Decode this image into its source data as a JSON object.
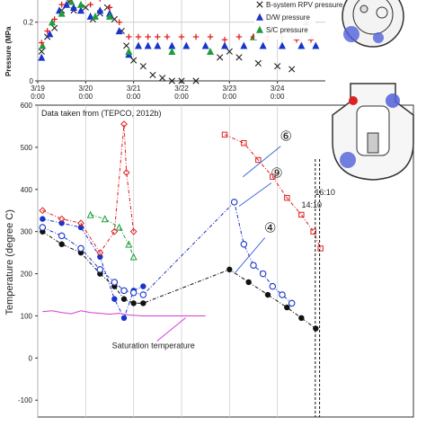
{
  "chart_data": [
    {
      "type": "scatter",
      "ylabel": "Pressure (MPa",
      "ylim": [
        0,
        0.3
      ],
      "xlim": [
        0,
        6
      ],
      "y_ticks": [
        0,
        0.2
      ],
      "y_tick_labels": [
        "0",
        "0.2"
      ],
      "x_ticks": [
        0,
        1,
        2,
        3,
        4,
        5
      ],
      "x_tick_labels": [
        [
          "3/19",
          "0:00"
        ],
        [
          "3/20",
          "0:00"
        ],
        [
          "3/21",
          "0:00"
        ],
        [
          "3/22",
          "0:00"
        ],
        [
          "3/23",
          "0:00"
        ],
        [
          "3/24",
          "0:00"
        ]
      ],
      "legend_position": "top-right",
      "series": [
        {
          "name": "B-system RPV pressure",
          "marker": "x",
          "color": "#222222",
          "points": [
            [
              0.08,
              0.1
            ],
            [
              0.2,
              0.15
            ],
            [
              0.35,
              0.18
            ],
            [
              0.5,
              0.24
            ],
            [
              0.65,
              0.27
            ],
            [
              0.75,
              0.24
            ],
            [
              0.9,
              0.29
            ],
            [
              1.0,
              0.25
            ],
            [
              1.15,
              0.21
            ],
            [
              1.3,
              0.23
            ],
            [
              1.45,
              0.25
            ],
            [
              1.6,
              0.21
            ],
            [
              1.75,
              0.17
            ],
            [
              1.85,
              0.12
            ],
            [
              2.0,
              0.07
            ],
            [
              2.2,
              0.05
            ],
            [
              2.4,
              0.02
            ],
            [
              2.6,
              0.01
            ],
            [
              2.8,
              0.0
            ],
            [
              3.0,
              0.0
            ],
            [
              3.3,
              0.0
            ],
            [
              3.8,
              0.08
            ],
            [
              4.0,
              0.1
            ],
            [
              4.2,
              0.08
            ],
            [
              4.6,
              0.06
            ],
            [
              5.0,
              0.05
            ],
            [
              5.3,
              0.04
            ]
          ]
        },
        {
          "name": "D/W pressure",
          "marker": "triangle",
          "color": "#1a35c9",
          "points": [
            [
              0.08,
              0.08
            ],
            [
              0.25,
              0.16
            ],
            [
              0.45,
              0.24
            ],
            [
              0.6,
              0.26
            ],
            [
              0.75,
              0.25
            ],
            [
              0.9,
              0.24
            ],
            [
              1.1,
              0.22
            ],
            [
              1.3,
              0.24
            ],
            [
              1.5,
              0.23
            ],
            [
              1.7,
              0.17
            ],
            [
              1.9,
              0.09
            ],
            [
              2.1,
              0.12
            ],
            [
              2.3,
              0.12
            ],
            [
              2.5,
              0.12
            ],
            [
              2.8,
              0.12
            ],
            [
              3.1,
              0.12
            ],
            [
              3.5,
              0.12
            ],
            [
              3.9,
              0.12
            ],
            [
              4.3,
              0.12
            ],
            [
              4.7,
              0.12
            ],
            [
              5.1,
              0.12
            ],
            [
              5.5,
              0.12
            ],
            [
              5.8,
              0.12
            ]
          ]
        },
        {
          "name": "S/C pressure",
          "marker": "triangle",
          "color": "#1f9e3a",
          "points": [
            [
              0.1,
              0.12
            ],
            [
              0.3,
              0.2
            ],
            [
              0.5,
              0.23
            ],
            [
              0.7,
              0.27
            ],
            [
              0.9,
              0.26
            ],
            [
              1.2,
              0.22
            ],
            [
              1.5,
              0.22
            ],
            [
              1.9,
              0.1
            ],
            [
              2.8,
              0.1
            ],
            [
              3.6,
              0.1
            ],
            [
              4.5,
              0.15
            ],
            [
              5.6,
              0.2
            ]
          ]
        },
        {
          "name": "",
          "marker": "plus",
          "color": "#e02020",
          "points": [
            [
              0.08,
              0.13
            ],
            [
              0.2,
              0.17
            ],
            [
              0.35,
              0.21
            ],
            [
              0.5,
              0.26
            ],
            [
              0.7,
              0.28
            ],
            [
              0.9,
              0.29
            ],
            [
              1.1,
              0.26
            ],
            [
              1.3,
              0.28
            ],
            [
              1.5,
              0.25
            ],
            [
              1.7,
              0.2
            ],
            [
              1.9,
              0.15
            ],
            [
              2.1,
              0.15
            ],
            [
              2.3,
              0.15
            ],
            [
              2.5,
              0.15
            ],
            [
              2.7,
              0.15
            ],
            [
              3.0,
              0.15
            ],
            [
              3.3,
              0.15
            ],
            [
              3.6,
              0.15
            ],
            [
              3.9,
              0.14
            ],
            [
              4.2,
              0.15
            ],
            [
              4.5,
              0.15
            ],
            [
              4.8,
              0.15
            ],
            [
              5.1,
              0.15
            ],
            [
              5.4,
              0.14
            ],
            [
              5.7,
              0.14
            ]
          ]
        }
      ]
    },
    {
      "type": "line",
      "title": "Data taken from (TEPCO, 2012b)",
      "ylabel": "Temperature (degree C)",
      "ylim": [
        -140,
        600
      ],
      "xlim": [
        0,
        6
      ],
      "y_ticks": [
        -100,
        0,
        100,
        200,
        300,
        400,
        500,
        600
      ],
      "annotations": [
        {
          "text": "⑥",
          "color": "#3a5fd9",
          "target": [
            4.28,
            430
          ]
        },
        {
          "text": "⑨",
          "color": "#3a5fd9",
          "target": [
            4.2,
            360
          ]
        },
        {
          "text": "④",
          "color": "#3a5fd9",
          "target": [
            4.1,
            200
          ]
        },
        {
          "text": "Saturation temperature",
          "color": "#d43bd4",
          "target": [
            2.3,
            100
          ]
        },
        {
          "text": "14:10",
          "color": "#111111",
          "x": 5.79
        },
        {
          "text": "16:10",
          "color": "#111111",
          "x": 5.88
        }
      ],
      "series": [
        {
          "name": "",
          "color": "#1a35c9",
          "line": "dashdot",
          "marker": "circle-filled",
          "points": [
            [
              0.1,
              330
            ],
            [
              0.5,
              320
            ],
            [
              0.9,
              310
            ],
            [
              1.3,
              240
            ],
            [
              1.6,
              140
            ],
            [
              1.8,
              95
            ],
            [
              2.0,
              160
            ],
            [
              2.2,
              170
            ]
          ]
        },
        {
          "name": "",
          "color": "#111111",
          "line": "dashdot",
          "marker": "circle-filled",
          "points": [
            [
              0.1,
              300
            ],
            [
              0.5,
              270
            ],
            [
              0.9,
              250
            ],
            [
              1.3,
              200
            ],
            [
              1.6,
              170
            ],
            [
              1.8,
              140
            ],
            [
              2.0,
              130
            ],
            [
              2.2,
              130
            ],
            [
              4.0,
              210
            ],
            [
              4.4,
              180
            ],
            [
              4.8,
              150
            ],
            [
              5.2,
              120
            ],
            [
              5.5,
              95
            ],
            [
              5.8,
              70
            ]
          ]
        },
        {
          "name": "",
          "color": "#1a35c9",
          "line": "dashdot",
          "marker": "circle-open",
          "points": [
            [
              0.1,
              310
            ],
            [
              0.5,
              290
            ],
            [
              0.9,
              260
            ],
            [
              1.3,
              210
            ],
            [
              1.6,
              180
            ],
            [
              1.8,
              160
            ],
            [
              2.0,
              155
            ],
            [
              2.2,
              150
            ],
            [
              4.1,
              370
            ],
            [
              4.3,
              270
            ],
            [
              4.5,
              220
            ],
            [
              4.7,
              200
            ],
            [
              4.9,
              170
            ],
            [
              5.1,
              150
            ],
            [
              5.3,
              130
            ]
          ]
        },
        {
          "name": "",
          "color": "#e02020",
          "line": "dashdot",
          "marker": "diamond-open",
          "points": [
            [
              0.1,
              350
            ],
            [
              0.5,
              330
            ],
            [
              0.9,
              320
            ],
            [
              1.3,
              250
            ],
            [
              1.6,
              300
            ],
            [
              1.8,
              555
            ],
            [
              1.85,
              440
            ],
            [
              2.0,
              300
            ]
          ]
        },
        {
          "name": "",
          "color": "#e02020",
          "line": "dashdot",
          "marker": "square-open",
          "points": [
            [
              3.9,
              530
            ],
            [
              4.3,
              510
            ],
            [
              4.6,
              470
            ],
            [
              4.9,
              430
            ],
            [
              5.2,
              380
            ],
            [
              5.5,
              340
            ],
            [
              5.75,
              300
            ],
            [
              5.9,
              260
            ]
          ]
        },
        {
          "name": "",
          "color": "#1f9e3a",
          "line": "dashdot",
          "marker": "triangle-open",
          "points": [
            [
              1.1,
              340
            ],
            [
              1.4,
              330
            ],
            [
              1.7,
              310
            ],
            [
              1.9,
              270
            ],
            [
              2.0,
              240
            ]
          ]
        },
        {
          "name": "",
          "color": "#d43bd4",
          "line": "solid",
          "marker": "none",
          "points": [
            [
              0.1,
              110
            ],
            [
              0.3,
              112
            ],
            [
              0.5,
              108
            ],
            [
              0.7,
              105
            ],
            [
              0.9,
              112
            ],
            [
              1.1,
              108
            ],
            [
              1.3,
              106
            ],
            [
              1.5,
              104
            ],
            [
              1.7,
              106
            ],
            [
              1.9,
              102
            ],
            [
              2.2,
              100
            ],
            [
              2.6,
              100
            ],
            [
              3.0,
              100
            ],
            [
              3.5,
              100
            ]
          ]
        }
      ]
    }
  ]
}
